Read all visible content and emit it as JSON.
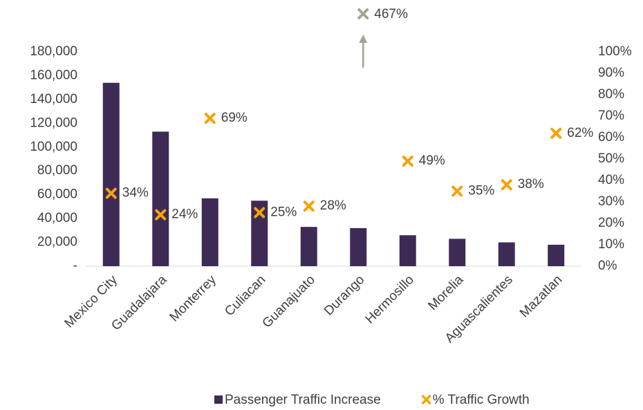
{
  "chart_data": {
    "type": "bar_scatter",
    "categories": [
      "Mexico City",
      "Guadalajara",
      "Monterrey",
      "Culiacan",
      "Guanajuato",
      "Durango",
      "Hermosillo",
      "Morelia",
      "Aguascalientes",
      "Mazatlan"
    ],
    "series": [
      {
        "name": "Passenger Traffic Increase",
        "color": "#3d2b56",
        "type": "bar",
        "values": [
          154000,
          113000,
          57000,
          55000,
          33000,
          32000,
          26000,
          23000,
          20000,
          18000
        ]
      },
      {
        "name": "% Traffic Growth",
        "color": "#f5a30a",
        "type": "scatter",
        "axis": "y2",
        "overflow_color": "#a0a595",
        "values": [
          34,
          24,
          69,
          25,
          28,
          467,
          49,
          35,
          38,
          62
        ],
        "value_labels": [
          "34%",
          "24%",
          "69%",
          "25%",
          "28%",
          "467%",
          "49%",
          "35%",
          "38%",
          "62%"
        ]
      }
    ],
    "ylim": [
      0,
      180000
    ],
    "yticks": [
      {
        "value": 0,
        "label": "-"
      },
      {
        "value": 20000,
        "label": "20,000"
      },
      {
        "value": 40000,
        "label": "40,000"
      },
      {
        "value": 60000,
        "label": "60,000"
      },
      {
        "value": 80000,
        "label": "80,000"
      },
      {
        "value": 100000,
        "label": "100,000"
      },
      {
        "value": 120000,
        "label": "120,000"
      },
      {
        "value": 140000,
        "label": "140,000"
      },
      {
        "value": 160000,
        "label": "160,000"
      },
      {
        "value": 180000,
        "label": "180,000"
      }
    ],
    "y2lim": [
      0,
      100
    ],
    "y2ticks": [
      {
        "value": 0,
        "label": "0%"
      },
      {
        "value": 10,
        "label": "10%"
      },
      {
        "value": 20,
        "label": "20%"
      },
      {
        "value": 30,
        "label": "30%"
      },
      {
        "value": 40,
        "label": "40%"
      },
      {
        "value": 50,
        "label": "50%"
      },
      {
        "value": 60,
        "label": "60%"
      },
      {
        "value": 70,
        "label": "70%"
      },
      {
        "value": 80,
        "label": "80%"
      },
      {
        "value": 90,
        "label": "90%"
      },
      {
        "value": 100,
        "label": "100%"
      }
    ],
    "grid": false,
    "legend": "bottom"
  }
}
